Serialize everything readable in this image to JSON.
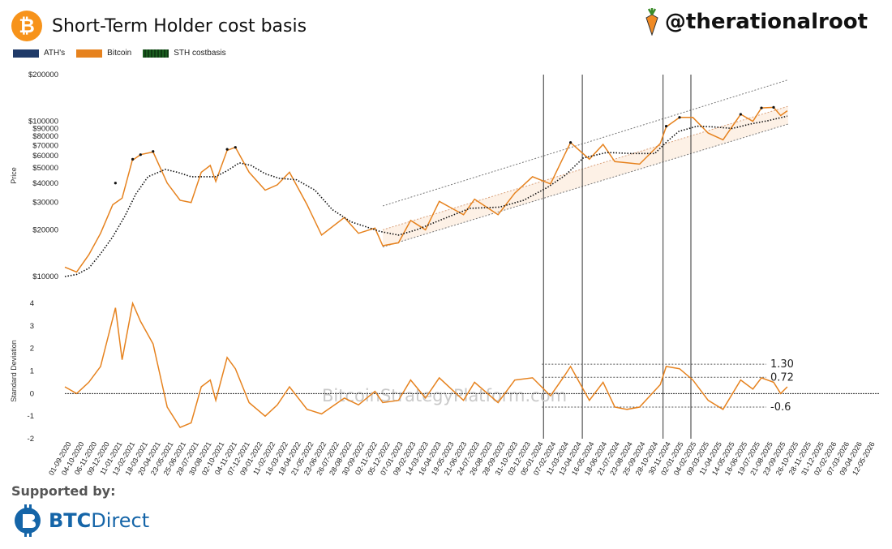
{
  "header": {
    "title": "Short-Term Holder cost basis",
    "logo_glyph": "₿",
    "handle": "@therationalroot"
  },
  "legend": [
    {
      "label": "ATH's",
      "color": "#1f3a68"
    },
    {
      "label": "Bitcoin",
      "color": "#e6821e"
    },
    {
      "label": "STH costbasis",
      "color": "#1b5e20"
    }
  ],
  "footer": {
    "supported_by": "Supported by:",
    "sponsor_part1": "BTC",
    "sponsor_part2": "Direct"
  },
  "watermark": "BitcoinStrategyPlatform.com",
  "chart_data": [
    {
      "type": "line",
      "ylabel": "Price",
      "yscale": "log",
      "ylim": [
        10000,
        200000
      ],
      "ticks": [
        {
          "v": 10000,
          "label": "$10000"
        },
        {
          "v": 20000,
          "label": "$20000"
        },
        {
          "v": 30000,
          "label": "$30000"
        },
        {
          "v": 40000,
          "label": "$40000"
        },
        {
          "v": 50000,
          "label": "$50000"
        },
        {
          "v": 60000,
          "label": "$60000"
        },
        {
          "v": 70000,
          "label": "$70000"
        },
        {
          "v": 80000,
          "label": "$80000"
        },
        {
          "v": 90000,
          "label": "$90000"
        },
        {
          "v": 100000,
          "label": "$100000"
        },
        {
          "v": 200000,
          "label": "$200000"
        }
      ],
      "series": [
        {
          "name": "Bitcoin",
          "color": "#e6821e",
          "points": [
            [
              "2020-09-01",
              11500
            ],
            [
              "2020-10-01",
              10700
            ],
            [
              "2020-11-01",
              13800
            ],
            [
              "2020-12-01",
              19000
            ],
            [
              "2021-01-01",
              29000
            ],
            [
              "2021-01-25",
              32000
            ],
            [
              "2021-02-20",
              56000
            ],
            [
              "2021-03-13",
              61000
            ],
            [
              "2021-04-14",
              63500
            ],
            [
              "2021-05-20",
              40000
            ],
            [
              "2021-06-22",
              31000
            ],
            [
              "2021-07-20",
              30000
            ],
            [
              "2021-08-15",
              47000
            ],
            [
              "2021-09-07",
              52000
            ],
            [
              "2021-09-21",
              41000
            ],
            [
              "2021-10-20",
              65000
            ],
            [
              "2021-11-10",
              68000
            ],
            [
              "2021-12-15",
              47000
            ],
            [
              "2022-01-25",
              36000
            ],
            [
              "2022-02-25",
              39000
            ],
            [
              "2022-03-28",
              47000
            ],
            [
              "2022-05-12",
              29000
            ],
            [
              "2022-06-18",
              18500
            ],
            [
              "2022-08-15",
              24000
            ],
            [
              "2022-09-20",
              19000
            ],
            [
              "2022-11-01",
              20500
            ],
            [
              "2022-11-21",
              15800
            ],
            [
              "2022-12-31",
              16500
            ],
            [
              "2023-01-31",
              23000
            ],
            [
              "2023-03-10",
              20000
            ],
            [
              "2023-04-14",
              30500
            ],
            [
              "2023-06-15",
              25000
            ],
            [
              "2023-07-13",
              31500
            ],
            [
              "2023-09-11",
              25000
            ],
            [
              "2023-10-24",
              34500
            ],
            [
              "2023-12-08",
              44000
            ],
            [
              "2024-01-23",
              39500
            ],
            [
              "2024-02-28",
              61000
            ],
            [
              "2024-03-14",
              73000
            ],
            [
              "2024-05-01",
              57000
            ],
            [
              "2024-06-05",
              71000
            ],
            [
              "2024-07-05",
              55000
            ],
            [
              "2024-08-05",
              54000
            ],
            [
              "2024-09-06",
              53000
            ],
            [
              "2024-10-29",
              72000
            ],
            [
              "2024-11-13",
              92000
            ],
            [
              "2024-12-17",
              106000
            ],
            [
              "2025-01-20",
              106000
            ],
            [
              "2025-02-28",
              84000
            ],
            [
              "2025-04-07",
              76000
            ],
            [
              "2025-05-22",
              111000
            ],
            [
              "2025-06-22",
              100000
            ],
            [
              "2025-07-14",
              122000
            ],
            [
              "2025-08-14",
              123000
            ],
            [
              "2025-09-01",
              109000
            ],
            [
              "2025-09-18",
              117000
            ]
          ]
        },
        {
          "name": "STH costbasis",
          "color": "#111111",
          "dotted": true,
          "points": [
            [
              "2020-09-01",
              10000
            ],
            [
              "2020-10-01",
              10300
            ],
            [
              "2020-11-01",
              11300
            ],
            [
              "2020-12-01",
              14000
            ],
            [
              "2021-01-01",
              18000
            ],
            [
              "2021-02-01",
              24500
            ],
            [
              "2021-03-01",
              34000
            ],
            [
              "2021-04-01",
              44000
            ],
            [
              "2021-05-15",
              49000
            ],
            [
              "2021-06-15",
              47000
            ],
            [
              "2021-07-20",
              44000
            ],
            [
              "2021-08-20",
              44000
            ],
            [
              "2021-09-20",
              44000
            ],
            [
              "2021-10-20",
              48000
            ],
            [
              "2021-11-20",
              54000
            ],
            [
              "2021-12-20",
              52000
            ],
            [
              "2022-01-25",
              46000
            ],
            [
              "2022-03-01",
              43000
            ],
            [
              "2022-04-15",
              42000
            ],
            [
              "2022-06-01",
              36000
            ],
            [
              "2022-07-15",
              27000
            ],
            [
              "2022-09-01",
              22500
            ],
            [
              "2022-11-15",
              19500
            ],
            [
              "2022-12-31",
              18500
            ],
            [
              "2023-02-15",
              20000
            ],
            [
              "2023-04-15",
              23000
            ],
            [
              "2023-07-01",
              27500
            ],
            [
              "2023-09-15",
              28000
            ],
            [
              "2023-11-15",
              31000
            ],
            [
              "2024-01-15",
              37500
            ],
            [
              "2024-03-01",
              45000
            ],
            [
              "2024-04-15",
              58000
            ],
            [
              "2024-06-15",
              63000
            ],
            [
              "2024-08-15",
              62000
            ],
            [
              "2024-10-15",
              62000
            ],
            [
              "2024-11-15",
              74000
            ],
            [
              "2024-12-15",
              86000
            ],
            [
              "2025-01-31",
              93000
            ],
            [
              "2025-03-15",
              92000
            ],
            [
              "2025-05-01",
              90000
            ],
            [
              "2025-06-15",
              96000
            ],
            [
              "2025-07-31",
              101000
            ],
            [
              "2025-09-18",
              108000
            ]
          ]
        },
        {
          "name": "ATH's",
          "color": "#111111",
          "markers": [
            [
              "2021-01-08",
              40000
            ],
            [
              "2021-02-21",
              57000
            ],
            [
              "2021-03-13",
              61000
            ],
            [
              "2021-04-14",
              64000
            ],
            [
              "2021-10-20",
              66000
            ],
            [
              "2021-11-10",
              68000
            ],
            [
              "2024-03-14",
              73000
            ],
            [
              "2024-11-13",
              93000
            ],
            [
              "2024-12-17",
              106000
            ],
            [
              "2025-05-22",
              111000
            ],
            [
              "2025-07-14",
              122000
            ],
            [
              "2025-08-14",
              123000
            ]
          ]
        }
      ]
    },
    {
      "type": "line",
      "ylabel": "Standard Deviation",
      "ylim": [
        -2,
        4
      ],
      "ticks": [
        {
          "v": -2,
          "label": "-2"
        },
        {
          "v": -1,
          "label": "-1"
        },
        {
          "v": 0,
          "label": "0"
        },
        {
          "v": 1,
          "label": "1"
        },
        {
          "v": 2,
          "label": "2"
        },
        {
          "v": 3,
          "label": "3"
        },
        {
          "v": 4,
          "label": "4"
        }
      ],
      "reference_lines": [
        {
          "value": 1.3,
          "label": "1.30"
        },
        {
          "value": 0.72,
          "label": "0.72"
        },
        {
          "value": -0.6,
          "label": "-0.6"
        }
      ],
      "series": [
        {
          "name": "Standard Deviation",
          "color": "#e6821e",
          "points": [
            [
              "2020-09-01",
              0.3
            ],
            [
              "2020-10-01",
              0.0
            ],
            [
              "2020-11-01",
              0.5
            ],
            [
              "2020-12-01",
              1.2
            ],
            [
              "2021-01-08",
              3.8
            ],
            [
              "2021-01-25",
              1.5
            ],
            [
              "2021-02-21",
              4.0
            ],
            [
              "2021-03-13",
              3.2
            ],
            [
              "2021-04-14",
              2.2
            ],
            [
              "2021-05-20",
              -0.6
            ],
            [
              "2021-06-22",
              -1.5
            ],
            [
              "2021-07-20",
              -1.3
            ],
            [
              "2021-08-15",
              0.3
            ],
            [
              "2021-09-07",
              0.6
            ],
            [
              "2021-09-21",
              -0.3
            ],
            [
              "2021-10-20",
              1.6
            ],
            [
              "2021-11-10",
              1.1
            ],
            [
              "2021-12-15",
              -0.4
            ],
            [
              "2022-01-25",
              -1.0
            ],
            [
              "2022-02-25",
              -0.5
            ],
            [
              "2022-03-28",
              0.3
            ],
            [
              "2022-05-12",
              -0.7
            ],
            [
              "2022-06-18",
              -0.9
            ],
            [
              "2022-08-15",
              -0.2
            ],
            [
              "2022-09-20",
              -0.5
            ],
            [
              "2022-11-01",
              0.1
            ],
            [
              "2022-11-21",
              -0.4
            ],
            [
              "2022-12-31",
              -0.3
            ],
            [
              "2023-01-31",
              0.6
            ],
            [
              "2023-03-10",
              -0.2
            ],
            [
              "2023-04-14",
              0.7
            ],
            [
              "2023-06-15",
              -0.3
            ],
            [
              "2023-07-13",
              0.5
            ],
            [
              "2023-09-11",
              -0.4
            ],
            [
              "2023-10-24",
              0.6
            ],
            [
              "2023-12-08",
              0.7
            ],
            [
              "2024-01-23",
              -0.1
            ],
            [
              "2024-02-28",
              0.8
            ],
            [
              "2024-03-14",
              1.2
            ],
            [
              "2024-05-01",
              -0.3
            ],
            [
              "2024-06-05",
              0.5
            ],
            [
              "2024-07-05",
              -0.6
            ],
            [
              "2024-08-05",
              -0.7
            ],
            [
              "2024-09-06",
              -0.6
            ],
            [
              "2024-10-29",
              0.4
            ],
            [
              "2024-11-13",
              1.2
            ],
            [
              "2024-12-17",
              1.1
            ],
            [
              "2025-01-20",
              0.6
            ],
            [
              "2025-02-28",
              -0.3
            ],
            [
              "2025-04-07",
              -0.7
            ],
            [
              "2025-05-22",
              0.6
            ],
            [
              "2025-06-22",
              0.2
            ],
            [
              "2025-07-14",
              0.7
            ],
            [
              "2025-08-14",
              0.5
            ],
            [
              "2025-09-01",
              0.0
            ],
            [
              "2025-09-18",
              0.3
            ]
          ]
        }
      ]
    }
  ],
  "x_axis": {
    "start": "2020-09-01",
    "end": "2026-05-12",
    "tick_labels": [
      "01-09-2020",
      "04-10-2020",
      "06-11-2020",
      "09-12-2020",
      "11-01-2021",
      "13-02-2021",
      "18-03-2021",
      "20-04-2021",
      "23-05-2021",
      "25-06-2021",
      "28-07-2021",
      "30-08-2021",
      "02-10-2021",
      "04-11-2021",
      "07-12-2021",
      "09-01-2022",
      "11-02-2022",
      "16-03-2022",
      "18-04-2022",
      "21-05-2022",
      "23-06-2022",
      "26-07-2022",
      "28-08-2022",
      "30-09-2022",
      "02-11-2022",
      "05-12-2022",
      "07-01-2023",
      "09-02-2023",
      "14-03-2023",
      "16-04-2023",
      "19-05-2023",
      "21-06-2023",
      "24-07-2023",
      "26-08-2023",
      "28-09-2023",
      "31-10-2023",
      "03-12-2023",
      "05-01-2024",
      "07-02-2024",
      "11-03-2024",
      "13-04-2024",
      "16-05-2024",
      "18-06-2024",
      "21-07-2024",
      "23-08-2024",
      "25-09-2024",
      "28-10-2024",
      "30-11-2024",
      "02-01-2025",
      "04-02-2025",
      "09-03-2025",
      "11-04-2025",
      "14-05-2025",
      "16-06-2025",
      "19-07-2025",
      "21-08-2025",
      "23-09-2025",
      "26-10-2025",
      "28-11-2025",
      "31-12-2025",
      "02-02-2026",
      "07-03-2026",
      "09-04-2026",
      "12-05-2026"
    ]
  },
  "vertical_markers": [
    "2024-01-05",
    "2024-04-13",
    "2024-11-05",
    "2025-01-15"
  ],
  "channel": {
    "start": "2022-11-21",
    "end": "2025-09-20",
    "lines": [
      {
        "start": 28500,
        "end": 185000,
        "style": "dotted"
      },
      {
        "start": 20000,
        "end": 125000,
        "style": "dotted-light"
      },
      {
        "start": 15500,
        "end": 96000,
        "style": "dotted"
      }
    ]
  }
}
